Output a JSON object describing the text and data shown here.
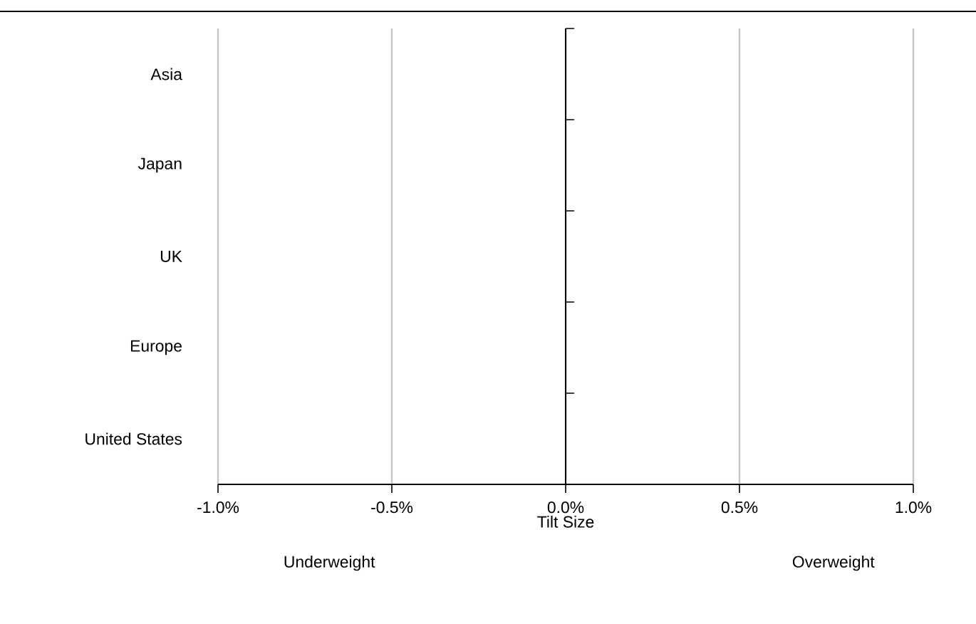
{
  "chart_data": {
    "type": "bar",
    "orientation": "horizontal",
    "categories": [
      "Asia",
      "Japan",
      "UK",
      "Europe",
      "United States"
    ],
    "values": [
      0,
      0,
      0,
      0,
      0
    ],
    "xlabel": "Tilt Size",
    "xlim": [
      -1,
      1
    ],
    "xticks": [
      {
        "value": -1,
        "label": "-1.0%"
      },
      {
        "value": -0.5,
        "label": "-0.5%"
      },
      {
        "value": 0,
        "label": "0.0%"
      },
      {
        "value": 0.5,
        "label": "0.5%"
      },
      {
        "value": 1,
        "label": "1.0%"
      }
    ],
    "grid": "x",
    "annotations": [
      "Underweight",
      "Overweight"
    ]
  }
}
